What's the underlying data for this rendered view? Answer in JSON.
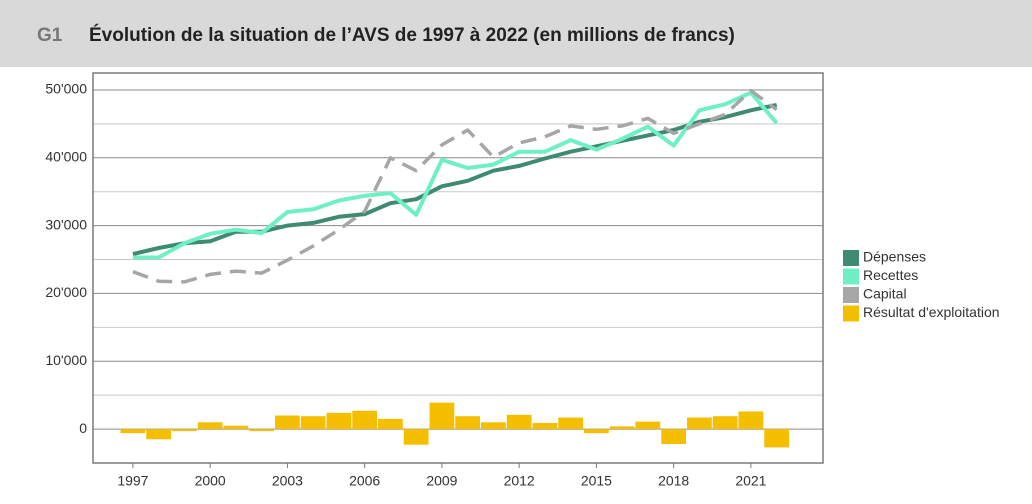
{
  "header": {
    "label": "G1",
    "title": "Évolution de la situation de l’AVS de 1997 à 2022 (en millions de francs)"
  },
  "chart_data": {
    "type": "combo",
    "x": [
      1997,
      1998,
      1999,
      2000,
      2001,
      2002,
      2003,
      2004,
      2005,
      2006,
      2007,
      2008,
      2009,
      2010,
      2011,
      2012,
      2013,
      2014,
      2015,
      2016,
      2017,
      2018,
      2019,
      2020,
      2021,
      2022
    ],
    "xlim": [
      1995.45,
      2023.8
    ],
    "xticks": [
      1997,
      2000,
      2003,
      2006,
      2009,
      2012,
      2015,
      2018,
      2021
    ],
    "ylim": [
      -5000,
      52500
    ],
    "yticks": [
      0,
      {
        "value": 10000,
        "label": "10'000"
      },
      {
        "value": 20000,
        "label": "20'000"
      },
      {
        "value": 30000,
        "label": "30'000"
      },
      {
        "value": 40000,
        "label": "40'000"
      },
      {
        "value": 50000,
        "label": "50'000"
      }
    ],
    "y_minor_grid": [
      5000,
      15000,
      25000,
      35000,
      45000
    ],
    "grid": true,
    "legend": "right",
    "series": [
      {
        "name": "Dépenses",
        "kind": "line",
        "color": "#3f8a72",
        "values": [
          25800,
          26700,
          27400,
          27700,
          29100,
          29100,
          30000,
          30400,
          31300,
          31700,
          33300,
          33900,
          35800,
          36600,
          38100,
          38800,
          39900,
          40900,
          41700,
          42500,
          43300,
          44100,
          45300,
          46000,
          47000,
          47800
        ]
      },
      {
        "name": "Recettes",
        "kind": "line",
        "color": "#6ff0c4",
        "values": [
          25300,
          25300,
          27400,
          28800,
          29400,
          28900,
          32000,
          32400,
          33700,
          34400,
          34800,
          31600,
          39700,
          38500,
          39000,
          40900,
          40900,
          42600,
          41200,
          42800,
          44600,
          41800,
          47000,
          47900,
          49600,
          45100
        ]
      },
      {
        "name": "Capital",
        "kind": "line",
        "dashed": true,
        "color": "#a6a6a6",
        "values": [
          23200,
          21800,
          21700,
          22800,
          23300,
          23000,
          24900,
          27000,
          29400,
          32100,
          40000,
          38100,
          41900,
          44100,
          40100,
          42200,
          43100,
          44700,
          44200,
          44700,
          45800,
          43600,
          45000,
          46400,
          49900,
          47100
        ]
      },
      {
        "name": "Résultat d'exploitation",
        "kind": "bar",
        "color": "#f5bf00",
        "values": [
          -600,
          -1500,
          -300,
          1000,
          500,
          -300,
          2000,
          1900,
          2400,
          2700,
          1500,
          -2300,
          3900,
          1900,
          1000,
          2100,
          900,
          1700,
          -600,
          400,
          1100,
          -2200,
          1700,
          1900,
          2600,
          -2700
        ]
      }
    ]
  }
}
